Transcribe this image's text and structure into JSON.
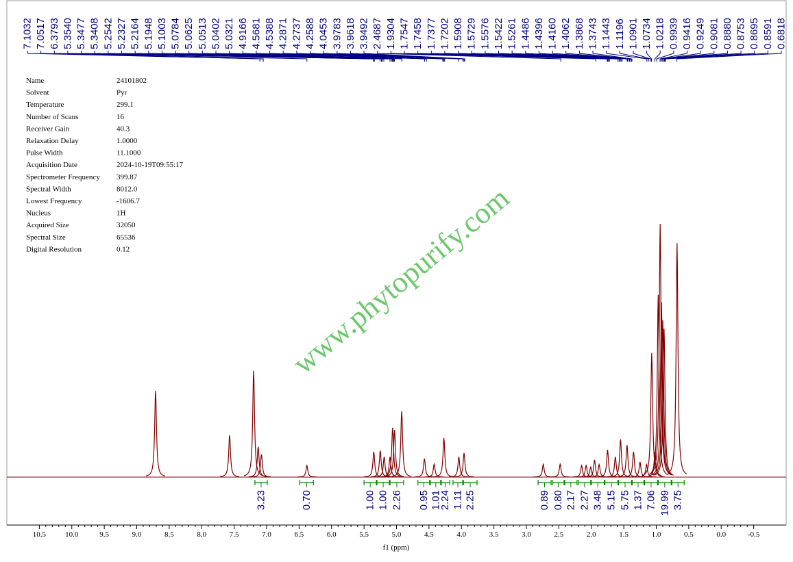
{
  "chart_data": {
    "type": "spectrum",
    "x_label": "f1 (ppm)",
    "xlim": [
      11.0,
      -1.0
    ],
    "ylim": [
      0,
      100
    ],
    "xticks": [
      10.5,
      {
        "value": 10.0,
        "label": "10.0"
      },
      9.5,
      {
        "value": 9.0,
        "label": "9.0"
      },
      8.5,
      {
        "value": 8.0,
        "label": "8.0"
      },
      7.5,
      {
        "value": 7.0,
        "label": "7.0"
      },
      6.5,
      {
        "value": 6.0,
        "label": "6.0"
      },
      5.5,
      {
        "value": 5.0,
        "label": "5.0"
      },
      4.5,
      {
        "value": 4.0,
        "label": "4.0"
      },
      3.5,
      {
        "value": 3.0,
        "label": "3.0"
      },
      2.5,
      {
        "value": 2.0,
        "label": "2.0"
      },
      1.5,
      {
        "value": 1.0,
        "label": "1.0"
      },
      0.5,
      {
        "value": 0.0,
        "label": "0.0"
      },
      -0.5
    ],
    "color": "#800000",
    "x": [
      8.71,
      7.57,
      7.2,
      7.13,
      7.08,
      6.38,
      5.35,
      5.25,
      5.19,
      5.1,
      5.06,
      5.03,
      4.92,
      4.57,
      4.42,
      4.27,
      4.04,
      3.96,
      2.74,
      2.48,
      2.15,
      2.08,
      2.01,
      1.95,
      1.88,
      1.75,
      1.63,
      1.55,
      1.45,
      1.35,
      1.25,
      1.15,
      1.07,
      1.02,
      0.97,
      0.94,
      0.92,
      0.9,
      0.88,
      0.68
    ],
    "values": [
      34,
      16.5,
      42,
      12,
      9,
      4.6,
      10,
      10.5,
      8,
      8,
      19.5,
      18.6,
      26,
      7.3,
      5.1,
      15.4,
      8,
      9.5,
      5.1,
      5.1,
      4.6,
      4.6,
      4,
      6.8,
      5,
      10.8,
      8,
      14.9,
      12.7,
      10,
      6,
      5,
      49,
      10,
      72,
      100,
      69,
      62,
      58.6,
      92.4
    ],
    "peak_labels": [
      "7.1032",
      "7.0517",
      "6.3793",
      "5.3540",
      "5.3477",
      "5.3408",
      "5.2542",
      "5.2327",
      "5.2164",
      "5.1948",
      "5.1003",
      "5.0784",
      "5.0625",
      "5.0513",
      "5.0402",
      "5.0321",
      "4.9166",
      "4.5681",
      "4.5388",
      "4.2871",
      "4.2737",
      "4.2588",
      "4.0453",
      "3.9783",
      "3.9618",
      "3.9492",
      "2.4687",
      "1.9304",
      "1.7547",
      "1.7458",
      "1.7377",
      "1.7202",
      "1.5908",
      "1.5729",
      "1.5576",
      "1.5422",
      "1.5261",
      "1.4486",
      "1.4396",
      "1.4160",
      "1.4062",
      "1.3868",
      "1.3743",
      "1.1443",
      "1.1196",
      "1.0901",
      "1.0734",
      "1.0218",
      "0.9939",
      "0.9416",
      "0.9249",
      "0.9081",
      "0.8880",
      "0.8753",
      "0.8695",
      "0.8591",
      "0.6818"
    ],
    "integrals": [
      {
        "label": "3.23",
        "from": 7.18,
        "to": 6.99
      },
      {
        "label": "0.70",
        "from": 6.49,
        "to": 6.28
      },
      {
        "label": "1.00",
        "from": 5.5,
        "to": 5.31
      },
      {
        "label": "1.00",
        "from": 5.3,
        "to": 5.11
      },
      {
        "label": "2.26",
        "from": 5.1,
        "to": 4.89
      },
      {
        "label": "0.95",
        "from": 4.67,
        "to": 4.49
      },
      {
        "label": "1.01",
        "from": 4.48,
        "to": 4.31
      },
      {
        "label": "2.24",
        "from": 4.32,
        "to": 4.18
      },
      {
        "label": "1.11",
        "from": 4.13,
        "to": 3.98
      },
      {
        "label": "2.25",
        "from": 3.97,
        "to": 3.76
      },
      {
        "label": "0.89",
        "from": 2.82,
        "to": 2.62
      },
      {
        "label": "0.80",
        "from": 2.6,
        "to": 2.42
      },
      {
        "label": "2.17",
        "from": 2.41,
        "to": 2.22
      },
      {
        "label": "2.27",
        "from": 2.2,
        "to": 2.01
      },
      {
        "label": "3.48",
        "from": 2.0,
        "to": 1.8
      },
      {
        "label": "5.15",
        "from": 1.79,
        "to": 1.59
      },
      {
        "label": "5.75",
        "from": 1.58,
        "to": 1.38
      },
      {
        "label": "1.37",
        "from": 1.37,
        "to": 1.19
      },
      {
        "label": "7.06",
        "from": 1.18,
        "to": 0.98
      },
      {
        "label": "19.99",
        "from": 0.97,
        "to": 0.77
      },
      {
        "label": "3.75",
        "from": 0.76,
        "to": 0.57
      }
    ],
    "parameters": [
      [
        "Name",
        "24101802"
      ],
      [
        "Solvent",
        "Pyr"
      ],
      [
        "Temperature",
        "299.1"
      ],
      [
        "Number of Scans",
        "16"
      ],
      [
        "Receiver Gain",
        "40.3"
      ],
      [
        "Relaxation Delay",
        "1.0000"
      ],
      [
        "Pulse Width",
        "11.1000"
      ],
      [
        "Acquisition Date",
        "2024-10-19T09:55:17"
      ],
      [
        "Spectrometer Frequency",
        "399.87"
      ],
      [
        "Spectral Width",
        "8012.0"
      ],
      [
        "Lowest Frequency",
        "-1606.7"
      ],
      [
        "Nucleus",
        "1H"
      ],
      [
        "Acquired Size",
        "32050"
      ],
      [
        "Spectral Size",
        "65536"
      ],
      [
        "Digital Resolution",
        "0.12"
      ]
    ],
    "watermark": "www.phytopurify.com"
  }
}
